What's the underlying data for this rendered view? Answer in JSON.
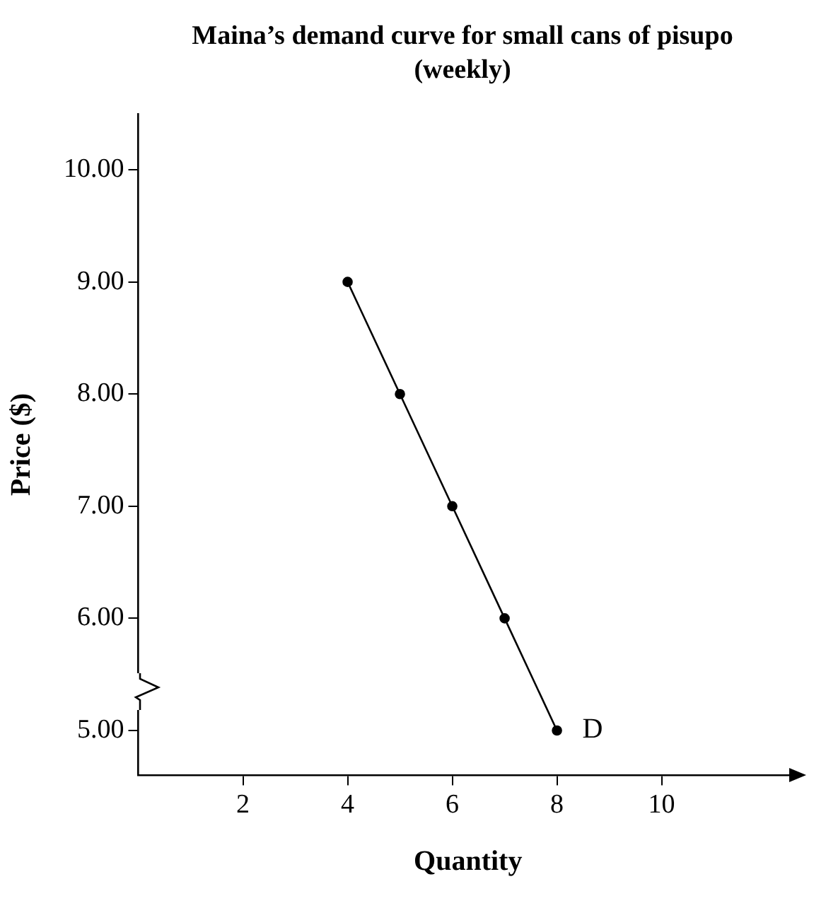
{
  "chart_data": {
    "type": "line",
    "title": "Maina’s demand curve for small cans of pisupo (weekly)",
    "xlabel": "Quantity",
    "ylabel": "Price ($)",
    "x": [
      4,
      5,
      6,
      7,
      8
    ],
    "series": [
      {
        "color": "#000000",
        "values": [
          9,
          8,
          7,
          6,
          5
        ]
      }
    ],
    "xlim": [
      0,
      12.6
    ],
    "xticks": [
      2,
      4,
      6,
      8,
      10
    ],
    "ylim": [
      4.6,
      10.5
    ],
    "yticks": [
      {
        "value": 5,
        "label": "5.00"
      },
      {
        "value": 6,
        "label": "6.00"
      },
      {
        "value": 7,
        "label": "7.00"
      },
      {
        "value": 8,
        "label": "8.00"
      },
      {
        "value": 9,
        "label": "9.00"
      },
      {
        "value": 10,
        "label": "10.00"
      }
    ],
    "annotations": [
      {
        "text": "D",
        "x": 8,
        "y": 5
      }
    ],
    "grid": false,
    "legend": false,
    "marker": "circle",
    "line_style": "solid"
  }
}
